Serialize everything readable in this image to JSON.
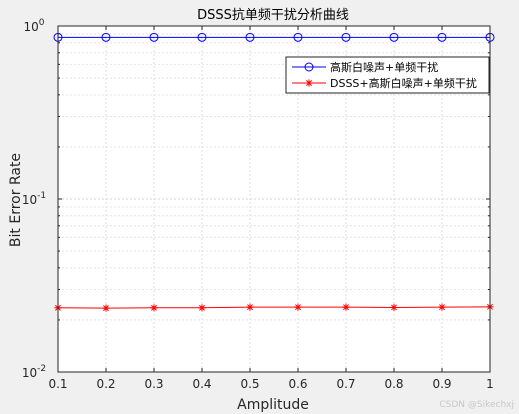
{
  "chart_data": {
    "type": "line",
    "title": "DSSS抗单频干扰分析曲线",
    "xlabel": "Amplitude",
    "ylabel": "Bit Error Rate",
    "xlim": [
      0.1,
      1
    ],
    "ylim": [
      0.01,
      1
    ],
    "y_scale": "log",
    "grid": true,
    "x_ticks": [
      "0.1",
      "0.2",
      "0.3",
      "0.4",
      "0.5",
      "0.6",
      "0.7",
      "0.8",
      "0.9",
      "1"
    ],
    "y_ticks": [
      {
        "value": 1,
        "base": "10",
        "exp": "0"
      },
      {
        "value": 0.1,
        "base": "10",
        "exp": "-1"
      },
      {
        "value": 0.01,
        "base": "10",
        "exp": "-2"
      }
    ],
    "legend_position": "top-right",
    "x": [
      0.1,
      0.2,
      0.3,
      0.4,
      0.5,
      0.6,
      0.7,
      0.8,
      0.9,
      1.0
    ],
    "series": [
      {
        "name": "高斯白噪声+单频干扰",
        "color": "#0000ff",
        "marker": "circle",
        "values": [
          0.86,
          0.86,
          0.86,
          0.86,
          0.86,
          0.86,
          0.86,
          0.86,
          0.86,
          0.86
        ]
      },
      {
        "name": "DSSS+高斯白噪声+单频干扰",
        "color": "#ff0000",
        "marker": "asterisk",
        "values": [
          0.0235,
          0.0234,
          0.0235,
          0.0235,
          0.0237,
          0.0237,
          0.0237,
          0.0236,
          0.0237,
          0.0238
        ]
      }
    ]
  },
  "watermark": "CSDN @Sikechxj"
}
